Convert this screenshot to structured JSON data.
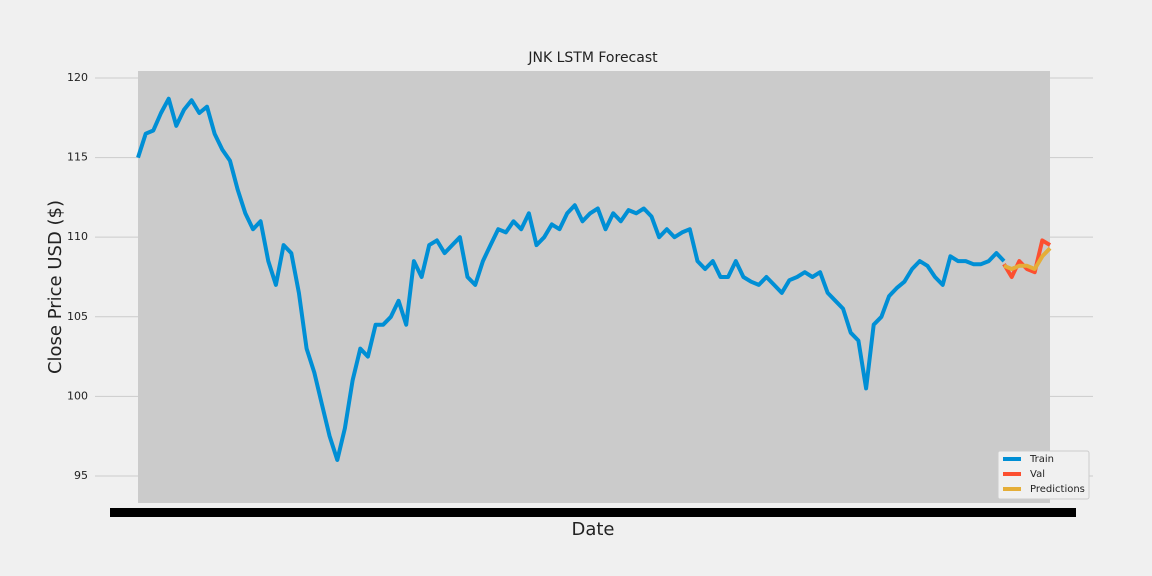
{
  "chart_data": {
    "type": "line",
    "title": "JNK LSTM Forecast",
    "x_label": "Date",
    "y_label": "Close Price USD ($)",
    "ylim": [
      93.3,
      120.44
    ],
    "yticks": [
      95,
      100,
      105,
      110,
      115,
      120
    ],
    "grid": true,
    "legend": "lower right",
    "series": [
      {
        "name": "Train",
        "color": "#008fd5",
        "values": [
          115,
          116.5,
          116.7,
          117.8,
          118.7,
          117,
          118,
          118.6,
          117.8,
          118.2,
          116.5,
          115.5,
          114.8,
          113,
          111.5,
          110.5,
          111,
          108.5,
          107,
          109.5,
          109,
          106.5,
          103,
          101.5,
          99.5,
          97.5,
          96,
          98,
          101,
          103,
          102.5,
          104.5,
          104.5,
          105,
          106,
          104.5,
          108.5,
          107.5,
          109.5,
          109.8,
          109,
          109.5,
          110,
          107.5,
          107,
          108.5,
          109.5,
          110.5,
          110.3,
          111,
          110.5,
          111.5,
          109.5,
          110,
          110.8,
          110.5,
          111.5,
          112,
          111,
          111.5,
          111.8,
          110.5,
          111.5,
          111,
          111.7,
          111.5,
          111.8,
          111.3,
          110,
          110.5,
          110,
          110.3,
          110.5,
          108.5,
          108,
          108.5,
          107.5,
          107.5,
          108.5,
          107.5,
          107.2,
          107,
          107.5,
          107,
          106.5,
          107.3,
          107.5,
          107.8,
          107.5,
          107.8,
          106.5,
          106,
          105.5,
          104,
          103.5,
          100.5,
          104.5,
          105,
          106.3,
          106.8,
          107.2,
          108,
          108.5,
          108.2,
          107.5,
          107,
          108.8,
          108.5,
          108.5,
          108.3,
          108.3,
          108.5,
          109,
          108.5
        ]
      },
      {
        "name": "Val",
        "color": "#fc4f30",
        "values": [
          null,
          null,
          null,
          null,
          null,
          null,
          null,
          null,
          null,
          null,
          null,
          null,
          null,
          null,
          null,
          null,
          null,
          null,
          null,
          null,
          null,
          null,
          null,
          null,
          null,
          null,
          null,
          null,
          null,
          null,
          null,
          null,
          null,
          null,
          null,
          null,
          null,
          null,
          null,
          null,
          null,
          null,
          null,
          null,
          null,
          null,
          null,
          null,
          null,
          null,
          null,
          null,
          null,
          null,
          null,
          null,
          null,
          null,
          null,
          null,
          null,
          null,
          null,
          null,
          null,
          null,
          null,
          null,
          null,
          null,
          null,
          null,
          null,
          null,
          null,
          null,
          null,
          null,
          null,
          null,
          null,
          null,
          null,
          null,
          null,
          null,
          null,
          null,
          null,
          null,
          null,
          null,
          null,
          null,
          null,
          null,
          null,
          null,
          null,
          null,
          null,
          null,
          null,
          null,
          null,
          null,
          null,
          null,
          null,
          null,
          null,
          null,
          null,
          108.3,
          107.5,
          108.5,
          108,
          107.8,
          109.8,
          109.5
        ]
      },
      {
        "name": "Predictions",
        "color": "#e5ae38",
        "values": [
          null,
          null,
          null,
          null,
          null,
          null,
          null,
          null,
          null,
          null,
          null,
          null,
          null,
          null,
          null,
          null,
          null,
          null,
          null,
          null,
          null,
          null,
          null,
          null,
          null,
          null,
          null,
          null,
          null,
          null,
          null,
          null,
          null,
          null,
          null,
          null,
          null,
          null,
          null,
          null,
          null,
          null,
          null,
          null,
          null,
          null,
          null,
          null,
          null,
          null,
          null,
          null,
          null,
          null,
          null,
          null,
          null,
          null,
          null,
          null,
          null,
          null,
          null,
          null,
          null,
          null,
          null,
          null,
          null,
          null,
          null,
          null,
          null,
          null,
          null,
          null,
          null,
          null,
          null,
          null,
          null,
          null,
          null,
          null,
          null,
          null,
          null,
          null,
          null,
          null,
          null,
          null,
          null,
          null,
          null,
          null,
          null,
          null,
          null,
          null,
          null,
          null,
          null,
          null,
          null,
          null,
          null,
          null,
          null,
          null,
          null,
          null,
          null,
          108.2,
          108,
          108.2,
          108.2,
          108,
          108.8,
          109.3
        ]
      }
    ]
  }
}
